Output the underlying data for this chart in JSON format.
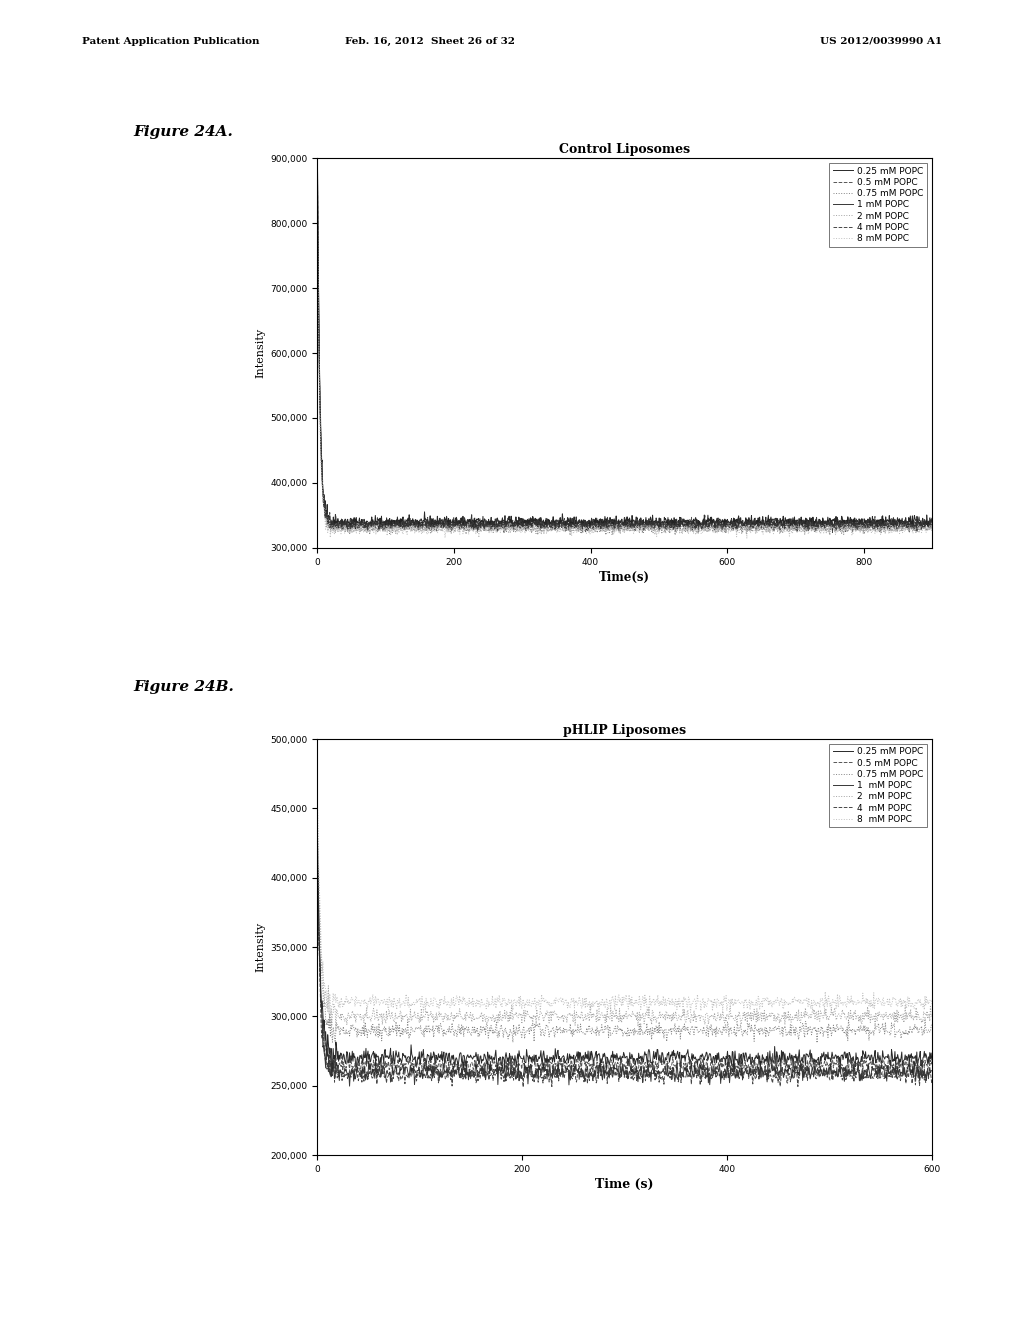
{
  "page_header_left": "Patent Application Publication",
  "page_header_mid": "Feb. 16, 2012  Sheet 26 of 32",
  "page_header_right": "US 2012/0039990 A1",
  "fig24a_label": "Figure 24A.",
  "fig24b_label": "Figure 24B.",
  "title_a": "Control Liposomes",
  "title_b": "pHLIP Liposomes",
  "xlabel_a": "Time(s)",
  "xlabel_b": "Time (s)",
  "ylabel": "Intensity",
  "legend_labels_a": [
    "0.25 mM POPC",
    "0.5 mM POPC",
    "0.75 mM POPC",
    "1 mM POPC",
    "2 mM POPC",
    "4 mM POPC",
    "8 mM POPC"
  ],
  "legend_labels_b": [
    "0.25 mM POPC",
    "0.5 mM POPC",
    "0.75 mM POPC",
    "1  mM POPC",
    "2  mM POPC",
    "4  mM POPC",
    "8  mM POPC"
  ],
  "ylim_a": [
    300000,
    900000
  ],
  "ylim_b": [
    200000,
    500000
  ],
  "xlim_a": [
    0,
    900
  ],
  "xlim_b": [
    0,
    600
  ],
  "yticks_a": [
    300000,
    400000,
    500000,
    600000,
    700000,
    800000,
    900000
  ],
  "yticks_b": [
    200000,
    250000,
    300000,
    350000,
    400000,
    450000,
    500000
  ],
  "xticks_a": [
    0,
    200,
    400,
    600,
    800
  ],
  "xticks_b": [
    0,
    200,
    400,
    600
  ],
  "line_colors_a": [
    "#111111",
    "#444444",
    "#777777",
    "#222222",
    "#999999",
    "#333333",
    "#bbbbbb"
  ],
  "line_styles_a": [
    "-",
    "--",
    ":",
    "-",
    ":",
    "--",
    ":"
  ],
  "line_colors_b": [
    "#111111",
    "#444444",
    "#777777",
    "#222222",
    "#999999",
    "#333333",
    "#bbbbbb"
  ],
  "line_styles_b": [
    "-",
    "--",
    ":",
    "-",
    ":",
    "--",
    ":"
  ],
  "background_color": "#ffffff",
  "baselines_a": [
    340000,
    335000,
    330000,
    338000,
    332000,
    336000,
    328000
  ],
  "spike_heights_a": [
    560000,
    540000,
    510000,
    550000,
    505000,
    530000,
    495000
  ],
  "noise_a": [
    4000,
    3800,
    3600,
    4100,
    3500,
    3900,
    3400
  ],
  "baselines_b": [
    270000,
    265000,
    290000,
    260000,
    300000,
    258000,
    310000
  ],
  "spike_heights_b": [
    160000,
    155000,
    150000,
    158000,
    148000,
    153000,
    145000
  ],
  "noise_b": [
    3000,
    2800,
    2700,
    3100,
    2600,
    2900,
    2500
  ]
}
